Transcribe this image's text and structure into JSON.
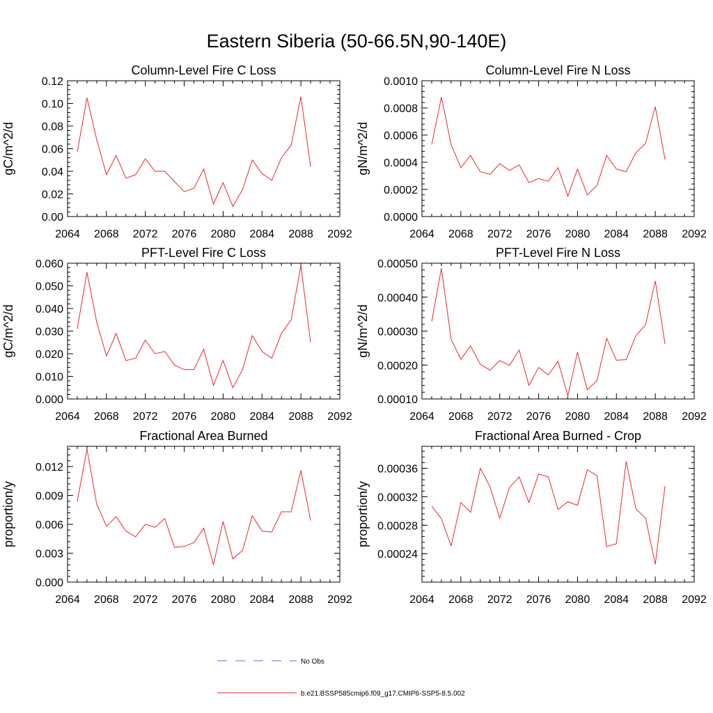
{
  "figure": {
    "title": "Eastern Siberia (50-66.5N,90-140E)"
  },
  "colors": {
    "model_line": "#e8262a",
    "obs_line": "#6a6ad0",
    "axis": "#000000"
  },
  "legend": {
    "obs_label": "No Obs",
    "model_label": "b.e21.BSSP585cmip6.f09_g17.CMIP6-SSP5-8.5.002"
  },
  "chart_data": [
    {
      "type": "line",
      "title": "Column-Level Fire C Loss",
      "ylabel": "gC/m^2/d",
      "xlim": [
        2064,
        2092
      ],
      "ylim": [
        0,
        0.12
      ],
      "xticks": [
        "2064",
        "2068",
        "2072",
        "2076",
        "2080",
        "2084",
        "2088",
        "2092"
      ],
      "yticks": [
        "0.00",
        "0.02",
        "0.04",
        "0.06",
        "0.08",
        "0.10",
        "0.12"
      ],
      "x": [
        2065,
        2066,
        2067,
        2068,
        2069,
        2070,
        2071,
        2072,
        2073,
        2074,
        2075,
        2076,
        2077,
        2078,
        2079,
        2080,
        2081,
        2082,
        2083,
        2084,
        2085,
        2086,
        2087,
        2088,
        2089
      ],
      "series": [
        {
          "values": [
            0.057,
            0.105,
            0.068,
            0.037,
            0.054,
            0.034,
            0.037,
            0.051,
            0.04,
            0.04,
            0.031,
            0.022,
            0.025,
            0.042,
            0.011,
            0.03,
            0.009,
            0.024,
            0.05,
            0.038,
            0.032,
            0.052,
            0.063,
            0.106,
            0.044
          ]
        }
      ]
    },
    {
      "type": "line",
      "title": "Column-Level Fire N Loss",
      "ylabel": "gN/m^2/d",
      "xlim": [
        2064,
        2092
      ],
      "ylim": [
        0,
        0.001
      ],
      "xticks": [
        "2064",
        "2068",
        "2072",
        "2076",
        "2080",
        "2084",
        "2088",
        "2092"
      ],
      "yticks": [
        "0.0000",
        "0.0002",
        "0.0004",
        "0.0006",
        "0.0008",
        "0.0010"
      ],
      "x": [
        2065,
        2066,
        2067,
        2068,
        2069,
        2070,
        2071,
        2072,
        2073,
        2074,
        2075,
        2076,
        2077,
        2078,
        2079,
        2080,
        2081,
        2082,
        2083,
        2084,
        2085,
        2086,
        2087,
        2088,
        2089
      ],
      "series": [
        {
          "values": [
            0.00053,
            0.00088,
            0.00053,
            0.00036,
            0.00045,
            0.00033,
            0.00031,
            0.00039,
            0.00034,
            0.00038,
            0.00025,
            0.00028,
            0.00026,
            0.00036,
            0.00015,
            0.00035,
            0.00016,
            0.00023,
            0.00045,
            0.00035,
            0.00033,
            0.00047,
            0.00054,
            0.00081,
            0.00042
          ]
        }
      ]
    },
    {
      "type": "line",
      "title": "PFT-Level Fire C Loss",
      "ylabel": "gC/m^2/d",
      "xlim": [
        2064,
        2092
      ],
      "ylim": [
        0,
        0.06
      ],
      "xticks": [
        "2064",
        "2068",
        "2072",
        "2076",
        "2080",
        "2084",
        "2088",
        "2092"
      ],
      "yticks": [
        "0.000",
        "0.010",
        "0.020",
        "0.030",
        "0.040",
        "0.050",
        "0.060"
      ],
      "x": [
        2065,
        2066,
        2067,
        2068,
        2069,
        2070,
        2071,
        2072,
        2073,
        2074,
        2075,
        2076,
        2077,
        2078,
        2079,
        2080,
        2081,
        2082,
        2083,
        2084,
        2085,
        2086,
        2087,
        2088,
        2089
      ],
      "series": [
        {
          "values": [
            0.031,
            0.056,
            0.034,
            0.019,
            0.029,
            0.017,
            0.018,
            0.026,
            0.02,
            0.021,
            0.015,
            0.013,
            0.013,
            0.022,
            0.006,
            0.017,
            0.005,
            0.013,
            0.028,
            0.021,
            0.018,
            0.029,
            0.035,
            0.059,
            0.025
          ]
        }
      ]
    },
    {
      "type": "line",
      "title": "PFT-Level Fire N Loss",
      "ylabel": "gN/m^2/d",
      "xlim": [
        2064,
        2092
      ],
      "ylim": [
        0.0001,
        0.0005
      ],
      "xticks": [
        "2064",
        "2068",
        "2072",
        "2076",
        "2080",
        "2084",
        "2088",
        "2092"
      ],
      "yticks": [
        "0.00010",
        "0.00020",
        "0.00030",
        "0.00040",
        "0.00050"
      ],
      "x": [
        2065,
        2066,
        2067,
        2068,
        2069,
        2070,
        2071,
        2072,
        2073,
        2074,
        2075,
        2076,
        2077,
        2078,
        2079,
        2080,
        2081,
        2082,
        2083,
        2084,
        2085,
        2086,
        2087,
        2088,
        2089
      ],
      "series": [
        {
          "values": [
            0.000328,
            0.000485,
            0.000276,
            0.000217,
            0.000256,
            0.000202,
            0.000185,
            0.000213,
            0.000199,
            0.000244,
            0.00014,
            0.000193,
            0.000171,
            0.000211,
            0.000109,
            0.000238,
            0.000127,
            0.000154,
            0.000279,
            0.000214,
            0.000216,
            0.000286,
            0.000319,
            0.000448,
            0.000262
          ]
        }
      ]
    },
    {
      "type": "line",
      "title": "Fractional Area Burned",
      "ylabel": "proportion/y",
      "xlim": [
        2064,
        2092
      ],
      "ylim": [
        0,
        0.0141
      ],
      "xticks": [
        "2064",
        "2068",
        "2072",
        "2076",
        "2080",
        "2084",
        "2088",
        "2092"
      ],
      "yticks": [
        "0.000",
        "0.003",
        "0.006",
        "0.009",
        "0.012"
      ],
      "ytick_values": [
        0,
        0.003,
        0.006,
        0.009,
        0.012
      ],
      "x": [
        2065,
        2066,
        2067,
        2068,
        2069,
        2070,
        2071,
        2072,
        2073,
        2074,
        2075,
        2076,
        2077,
        2078,
        2079,
        2080,
        2081,
        2082,
        2083,
        2084,
        2085,
        2086,
        2087,
        2088,
        2089
      ],
      "series": [
        {
          "values": [
            0.0084,
            0.0138,
            0.0081,
            0.0058,
            0.0068,
            0.0053,
            0.0047,
            0.006,
            0.0057,
            0.0066,
            0.0036,
            0.0037,
            0.0041,
            0.0056,
            0.0018,
            0.0063,
            0.0024,
            0.0033,
            0.0069,
            0.0053,
            0.0052,
            0.0073,
            0.0073,
            0.0116,
            0.0064
          ]
        }
      ]
    },
    {
      "type": "line",
      "title": "Fractional Area Burned - Crop",
      "ylabel": "proportion/y",
      "xlim": [
        2064,
        2092
      ],
      "ylim": [
        0.0002,
        0.000391
      ],
      "xticks": [
        "2064",
        "2068",
        "2072",
        "2076",
        "2080",
        "2084",
        "2088",
        "2092"
      ],
      "yticks": [
        "0.00024",
        "0.00028",
        "0.00032",
        "0.00036"
      ],
      "ytick_values": [
        0.00024,
        0.00028,
        0.00032,
        0.00036
      ],
      "x": [
        2065,
        2066,
        2067,
        2068,
        2069,
        2070,
        2071,
        2072,
        2073,
        2074,
        2075,
        2076,
        2077,
        2078,
        2079,
        2080,
        2081,
        2082,
        2083,
        2084,
        2085,
        2086,
        2087,
        2088,
        2089
      ],
      "series": [
        {
          "values": [
            0.000307,
            0.000289,
            0.000251,
            0.000312,
            0.000298,
            0.00036,
            0.000334,
            0.00029,
            0.000333,
            0.000348,
            0.000312,
            0.000352,
            0.000348,
            0.000302,
            0.000313,
            0.000308,
            0.000358,
            0.00035,
            0.00025,
            0.000254,
            0.00037,
            0.000303,
            0.00029,
            0.000225,
            0.000335
          ]
        }
      ]
    }
  ]
}
